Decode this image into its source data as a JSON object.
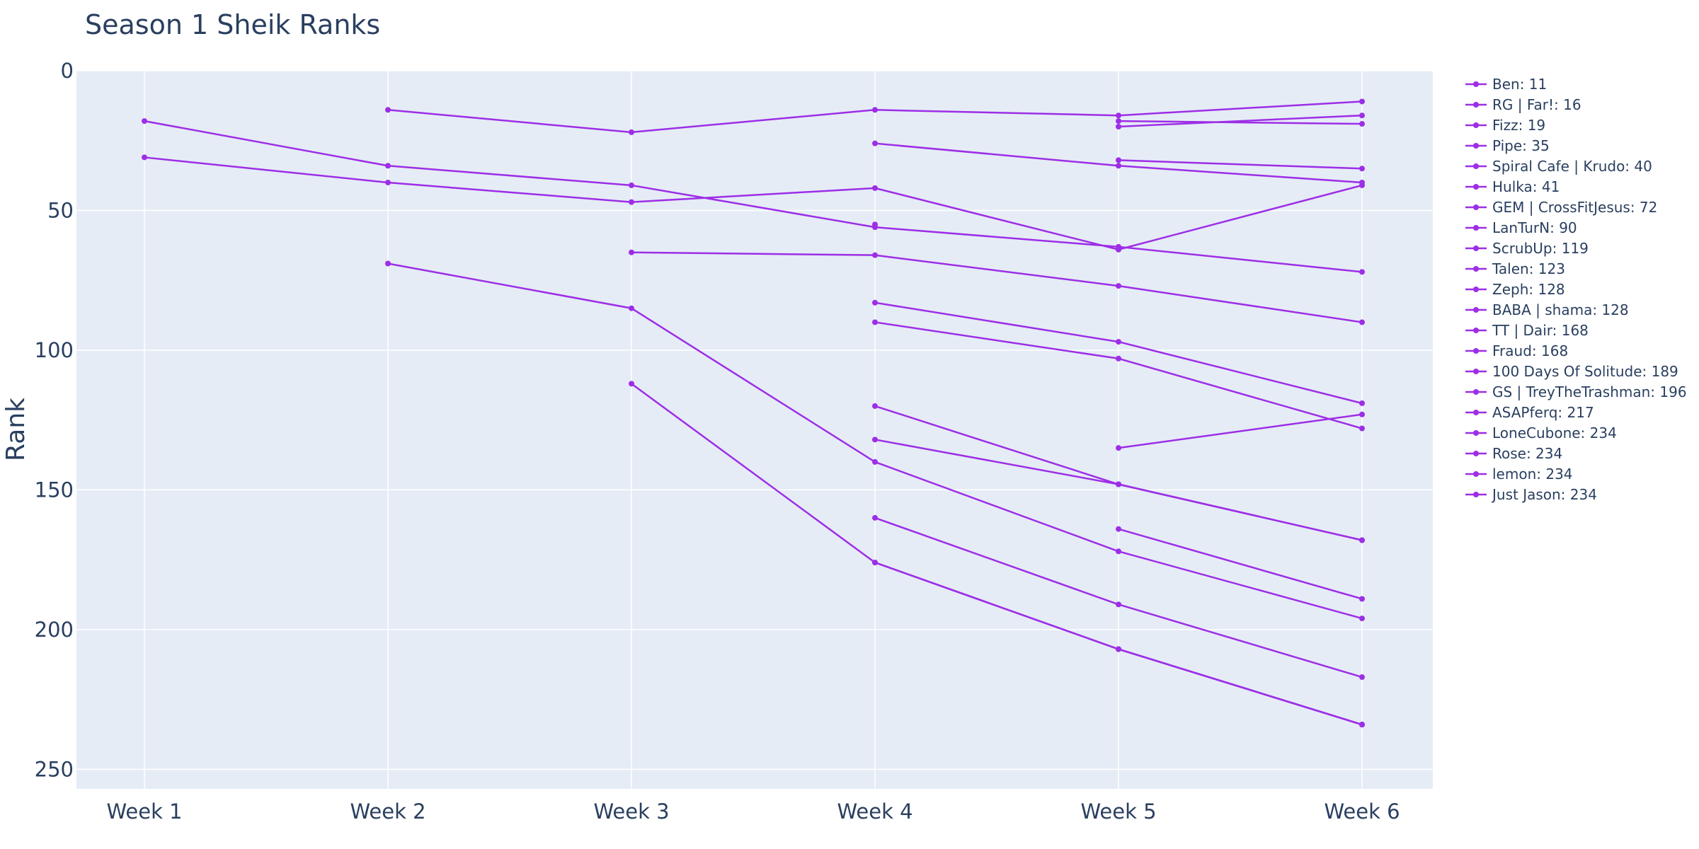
{
  "chart_data": {
    "type": "line",
    "title": "Season 1 Sheik Ranks",
    "xlabel": "",
    "ylabel": "Rank",
    "categories": [
      "Week 1",
      "Week 2",
      "Week 3",
      "Week 4",
      "Week 5",
      "Week 6"
    ],
    "yticks": [
      "0",
      "50",
      "100",
      "150",
      "200",
      "250"
    ],
    "ylim": [
      0,
      257
    ],
    "y_reversed": true,
    "grid": true,
    "legend_position": "right",
    "colors": {
      "series": "#9d2ee6",
      "plot_bg": "#e5ecf6",
      "grid": "#ffffff",
      "text": "#2a3f5f"
    },
    "series": [
      {
        "name": "Ben: 11",
        "values": [
          null,
          14,
          22,
          14,
          16,
          11
        ]
      },
      {
        "name": "RG | Far!: 16",
        "values": [
          null,
          null,
          null,
          null,
          20,
          16
        ]
      },
      {
        "name": "Fizz: 19",
        "values": [
          null,
          null,
          null,
          null,
          18,
          19
        ]
      },
      {
        "name": "Pipe: 35",
        "values": [
          null,
          null,
          null,
          null,
          32,
          35
        ]
      },
      {
        "name": "Spiral Cafe | Krudo: 40",
        "values": [
          null,
          null,
          null,
          26,
          34,
          40
        ]
      },
      {
        "name": "Hulka: 41",
        "values": [
          31,
          40,
          47,
          42,
          64,
          41
        ]
      },
      {
        "name": "GEM | CrossFitJesus: 72",
        "values": [
          18,
          34,
          41,
          56,
          63,
          72
        ]
      },
      {
        "name": "LanTurN: 90",
        "values": [
          null,
          null,
          65,
          66,
          77,
          90
        ]
      },
      {
        "name": "ScrubUp: 119",
        "values": [
          null,
          null,
          null,
          83,
          97,
          119
        ]
      },
      {
        "name": "Talen: 123",
        "values": [
          null,
          null,
          null,
          null,
          135,
          123
        ]
      },
      {
        "name": "Zeph: 128",
        "values": [
          null,
          null,
          null,
          90,
          103,
          128
        ]
      },
      {
        "name": "BABA | shama: 128",
        "values": [
          null,
          null,
          null,
          55,
          null,
          null
        ]
      },
      {
        "name": "TT | Dair: 168",
        "values": [
          null,
          null,
          null,
          120,
          148,
          168
        ]
      },
      {
        "name": "Fraud: 168",
        "values": [
          null,
          null,
          null,
          132,
          148,
          168
        ]
      },
      {
        "name": "100 Days Of Solitude: 189",
        "values": [
          null,
          null,
          null,
          null,
          164,
          189
        ]
      },
      {
        "name": "GS | TreyTheTrashman: 196",
        "values": [
          null,
          69,
          85,
          140,
          172,
          196
        ]
      },
      {
        "name": "ASAPferq: 217",
        "values": [
          null,
          null,
          null,
          160,
          191,
          217
        ]
      },
      {
        "name": "LoneCubone: 234",
        "values": [
          null,
          null,
          112,
          176,
          207,
          234
        ]
      },
      {
        "name": "Rose: 234",
        "values": [
          null,
          null,
          null,
          176,
          207,
          234
        ]
      },
      {
        "name": "lemon: 234",
        "values": [
          null,
          null,
          null,
          null,
          207,
          234
        ]
      },
      {
        "name": "Just Jason: 234",
        "values": [
          null,
          null,
          null,
          null,
          null,
          234
        ]
      }
    ]
  }
}
